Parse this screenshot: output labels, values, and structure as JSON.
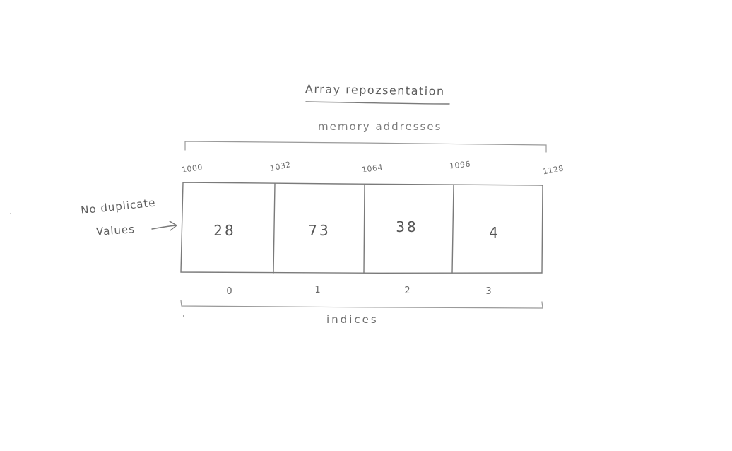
{
  "title": "Array repozsentation",
  "memory_caption": "memory addresses",
  "addresses": [
    "1000",
    "1032",
    "1064",
    "1096",
    "1128"
  ],
  "cells": [
    {
      "value": "28",
      "index": "0"
    },
    {
      "value": "73",
      "index": "1"
    },
    {
      "value": "38",
      "index": "2"
    },
    {
      "value": "4",
      "index": "3"
    }
  ],
  "indices_caption": "indices",
  "annotation": {
    "line1": "No duplicate",
    "line2": "Values"
  }
}
